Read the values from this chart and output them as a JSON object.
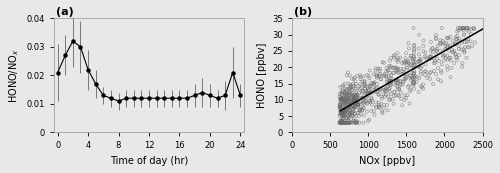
{
  "panel_a": {
    "x": [
      0,
      1,
      2,
      3,
      4,
      5,
      6,
      7,
      8,
      9,
      10,
      11,
      12,
      13,
      14,
      15,
      16,
      17,
      18,
      19,
      20,
      21,
      22,
      23,
      24
    ],
    "y": [
      0.021,
      0.027,
      0.032,
      0.03,
      0.022,
      0.017,
      0.013,
      0.012,
      0.011,
      0.012,
      0.012,
      0.012,
      0.012,
      0.012,
      0.012,
      0.012,
      0.012,
      0.012,
      0.013,
      0.014,
      0.013,
      0.012,
      0.013,
      0.021,
      0.013
    ],
    "yerr": [
      0.01,
      0.007,
      0.009,
      0.009,
      0.007,
      0.005,
      0.003,
      0.003,
      0.003,
      0.003,
      0.003,
      0.003,
      0.003,
      0.003,
      0.003,
      0.003,
      0.003,
      0.003,
      0.004,
      0.005,
      0.004,
      0.003,
      0.005,
      0.009,
      0.004
    ],
    "xlabel": "Time of day (hr)",
    "ylabel": "HONO/NO$_x$",
    "xlim": [
      -0.5,
      24.5
    ],
    "ylim": [
      0,
      0.04
    ],
    "xticks": [
      0,
      4,
      8,
      12,
      16,
      20,
      24
    ],
    "yticks": [
      0,
      0.01,
      0.02,
      0.03,
      0.04
    ],
    "ytick_labels": [
      "0",
      "0.01",
      "0.02",
      "0.03",
      "0.04"
    ],
    "label": "(a)"
  },
  "panel_b": {
    "slope": 0.0134,
    "intercept": -1.8169,
    "xlabel": "NOx [ppbv]",
    "ylabel": "HONO [ppbv]",
    "xlim": [
      0,
      2500
    ],
    "ylim": [
      0,
      35
    ],
    "xticks": [
      0,
      500,
      1000,
      1500,
      2000,
      2500
    ],
    "yticks": [
      0,
      5,
      10,
      15,
      20,
      25,
      30,
      35
    ],
    "line_x_start": 630,
    "line_x_end": 2500,
    "label": "(b)",
    "scatter_seed": 7,
    "n_points": 791,
    "nox_min": 600,
    "nox_max": 2100,
    "hono_scatter_std": 4.0
  },
  "figure": {
    "background": "#e8e8e8",
    "line_color": "#777777",
    "marker_color": "#000000",
    "scatter_edgecolor": "#666666",
    "figsize": [
      5.0,
      1.73
    ],
    "dpi": 100
  }
}
